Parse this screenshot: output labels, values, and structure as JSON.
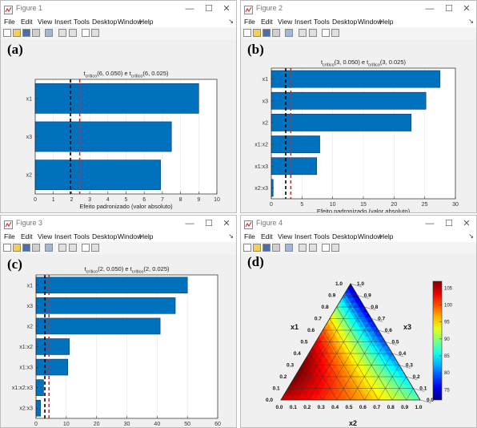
{
  "menu_items": [
    "File",
    "Edit",
    "View",
    "Insert",
    "Tools",
    "Desktop",
    "Window",
    "Help"
  ],
  "colors": {
    "bar": "#0072bd",
    "bar_edge": "#123a63",
    "crit1": "#000000",
    "crit2": "#e8201e",
    "window_bg": "#f0f0f0"
  },
  "windows": [
    {
      "title": "Figure 1",
      "panel": "(a)",
      "plot_title": {
        "pre1": "t",
        "sub1": "crítico",
        "mid": "(6, 0.050) e t",
        "sub2": "crítico",
        "post": "(6, 0.025)"
      },
      "xlabel": "Efeito padronizado (valor absoluto)"
    },
    {
      "title": "Figure 2",
      "panel": "(b)",
      "plot_title": {
        "pre1": "t",
        "sub1": "crítico",
        "mid": "(3, 0.050) e t",
        "sub2": "crítico",
        "post": "(3, 0.025)"
      },
      "xlabel": "Efeito padronizado (valor absoluto)"
    },
    {
      "title": "Figure 3",
      "panel": "(c)",
      "plot_title": {
        "pre1": "t",
        "sub1": "crítico",
        "mid": "(2, 0.050) e t",
        "sub2": "crítico",
        "post": "(2, 0.025)"
      },
      "xlabel": "Efeito padronizado (valor absoluto)"
    },
    {
      "title": "Figure 4",
      "panel": "(d)"
    }
  ],
  "chart_data": [
    {
      "type": "bar",
      "orientation": "horizontal",
      "categories": [
        "x1",
        "x3",
        "x2"
      ],
      "values": [
        9.0,
        7.5,
        6.9
      ],
      "xlim": [
        0,
        10
      ],
      "xticks": [
        0,
        1,
        2,
        3,
        4,
        5,
        6,
        7,
        8,
        9,
        10
      ],
      "crit_050": 1.94,
      "crit_025": 2.45,
      "xlabel": "Efeito padronizado (valor absoluto)"
    },
    {
      "type": "bar",
      "orientation": "horizontal",
      "categories": [
        "x1",
        "x3",
        "x2",
        "x1:x2",
        "x1:x3",
        "x2:x3"
      ],
      "values": [
        27.5,
        25.2,
        22.8,
        7.9,
        7.4,
        0.3
      ],
      "xlim": [
        0,
        30
      ],
      "xticks": [
        0,
        5,
        10,
        15,
        20,
        25,
        30
      ],
      "crit_050": 2.35,
      "crit_025": 3.18,
      "xlabel": "Efeito padronizado (valor absoluto)"
    },
    {
      "type": "bar",
      "orientation": "horizontal",
      "categories": [
        "x1",
        "x3",
        "x2",
        "x1:x2",
        "x1:x3",
        "x1:x2:x3",
        "x2:x3"
      ],
      "values": [
        50,
        46,
        41,
        11,
        10.5,
        2.5,
        1.5
      ],
      "xlim": [
        0,
        60
      ],
      "xticks": [
        0,
        10,
        20,
        30,
        40,
        50,
        60
      ],
      "crit_050": 2.92,
      "crit_025": 4.3,
      "xlabel": "Efeito padronizado (valor absoluto)"
    },
    {
      "type": "heatmap",
      "subtype": "ternary",
      "axes": [
        "x1",
        "x2",
        "x3"
      ],
      "ticks": [
        "0.0",
        "0.1",
        "0.2",
        "0.3",
        "0.4",
        "0.5",
        "0.6",
        "0.7",
        "0.8",
        "0.9",
        "1.0"
      ],
      "colorbar": {
        "min": 72,
        "max": 107,
        "ticks": [
          "75",
          "80",
          "85",
          "90",
          "95",
          "100",
          "105"
        ]
      }
    }
  ]
}
